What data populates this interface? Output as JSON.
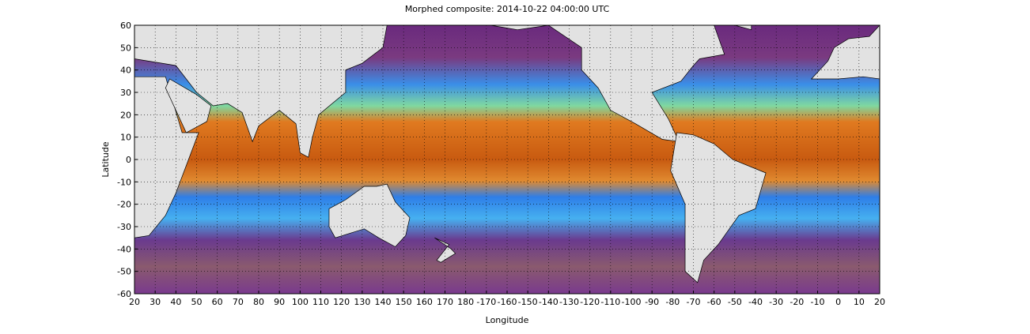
{
  "chart_data": {
    "type": "map",
    "title": "Morphed composite: 2014-10-22 04:00:00 UTC",
    "x_label": "Longitude",
    "y_label": "Latitude",
    "xlim": [
      20,
      380
    ],
    "ylim": [
      -60,
      60
    ],
    "xticks": [
      20,
      30,
      40,
      50,
      60,
      70,
      80,
      90,
      100,
      110,
      120,
      130,
      140,
      150,
      160,
      170,
      180,
      {
        "value": 190,
        "label": "-170"
      },
      {
        "value": 200,
        "label": "-160"
      },
      {
        "value": 210,
        "label": "-150"
      },
      {
        "value": 220,
        "label": "-140"
      },
      {
        "value": 230,
        "label": "-130"
      },
      {
        "value": 240,
        "label": "-120"
      },
      {
        "value": 250,
        "label": "-110"
      },
      {
        "value": 260,
        "label": "-100"
      },
      {
        "value": 270,
        "label": "-90"
      },
      {
        "value": 280,
        "label": "-80"
      },
      {
        "value": 290,
        "label": "-70"
      },
      {
        "value": 300,
        "label": "-60"
      },
      {
        "value": 310,
        "label": "-50"
      },
      {
        "value": 320,
        "label": "-40"
      },
      {
        "value": 330,
        "label": "-30"
      },
      {
        "value": 340,
        "label": "-20"
      },
      {
        "value": 350,
        "label": "-10"
      },
      {
        "value": 360,
        "label": "0"
      },
      {
        "value": 370,
        "label": "10"
      },
      {
        "value": 380,
        "label": "20"
      }
    ],
    "yticks": [
      60,
      50,
      40,
      30,
      20,
      10,
      0,
      -10,
      -20,
      -30,
      -40,
      -50,
      -60
    ],
    "grid": true
  }
}
